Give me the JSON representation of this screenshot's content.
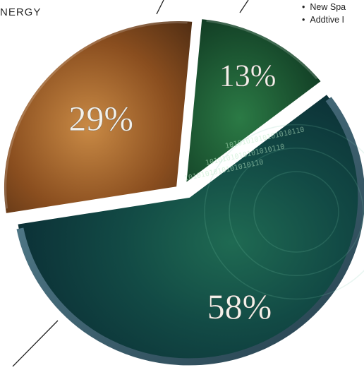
{
  "chart_data": {
    "type": "pie",
    "title": "",
    "slices": [
      {
        "label": "",
        "value": 58,
        "display": "58%",
        "color": "#0f3a36"
      },
      {
        "label": "",
        "value": 29,
        "display": "29%",
        "color": "#9a5a22"
      },
      {
        "label": "",
        "value": 13,
        "display": "13%",
        "color": "#113d26"
      }
    ],
    "legend": "none",
    "callouts": {
      "top_left_label": "NERGY",
      "top_right_items": [
        "New Spa",
        "Addtive I"
      ]
    },
    "decoration": {
      "binary_text": "1010101010101010110",
      "rim_color": "#3d6a7c"
    }
  }
}
